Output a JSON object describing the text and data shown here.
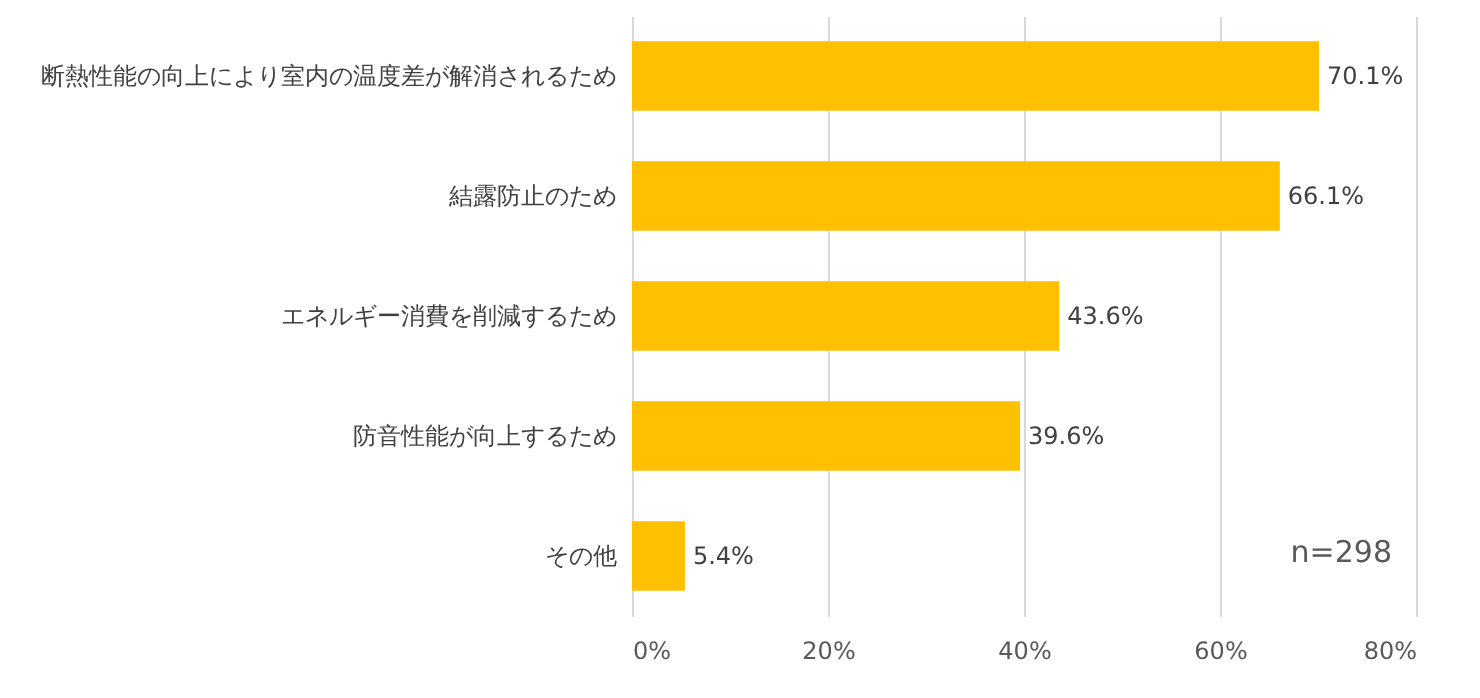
{
  "chart_data": {
    "type": "bar",
    "orientation": "horizontal",
    "categories": [
      "断熱性能の向上により室内の温度差が解消されるため",
      "結露防止のため",
      "エネルギー消費を削減するため",
      "防音性能が向上するため",
      "その他"
    ],
    "values": [
      70.1,
      66.1,
      43.6,
      39.6,
      5.4
    ],
    "value_labels": [
      "70.1%",
      "66.1%",
      "43.6%",
      "39.6%",
      "5.4%"
    ],
    "color": "#ffc000",
    "xlim": [
      0,
      80
    ],
    "xticks": [
      {
        "value": 0,
        "label": "0%"
      },
      {
        "value": 20,
        "label": "20%"
      },
      {
        "value": 40,
        "label": "40%"
      },
      {
        "value": 60,
        "label": "60%"
      },
      {
        "value": 80,
        "label": "80%"
      }
    ],
    "grid": "x",
    "annotations": [
      "n=298"
    ]
  }
}
